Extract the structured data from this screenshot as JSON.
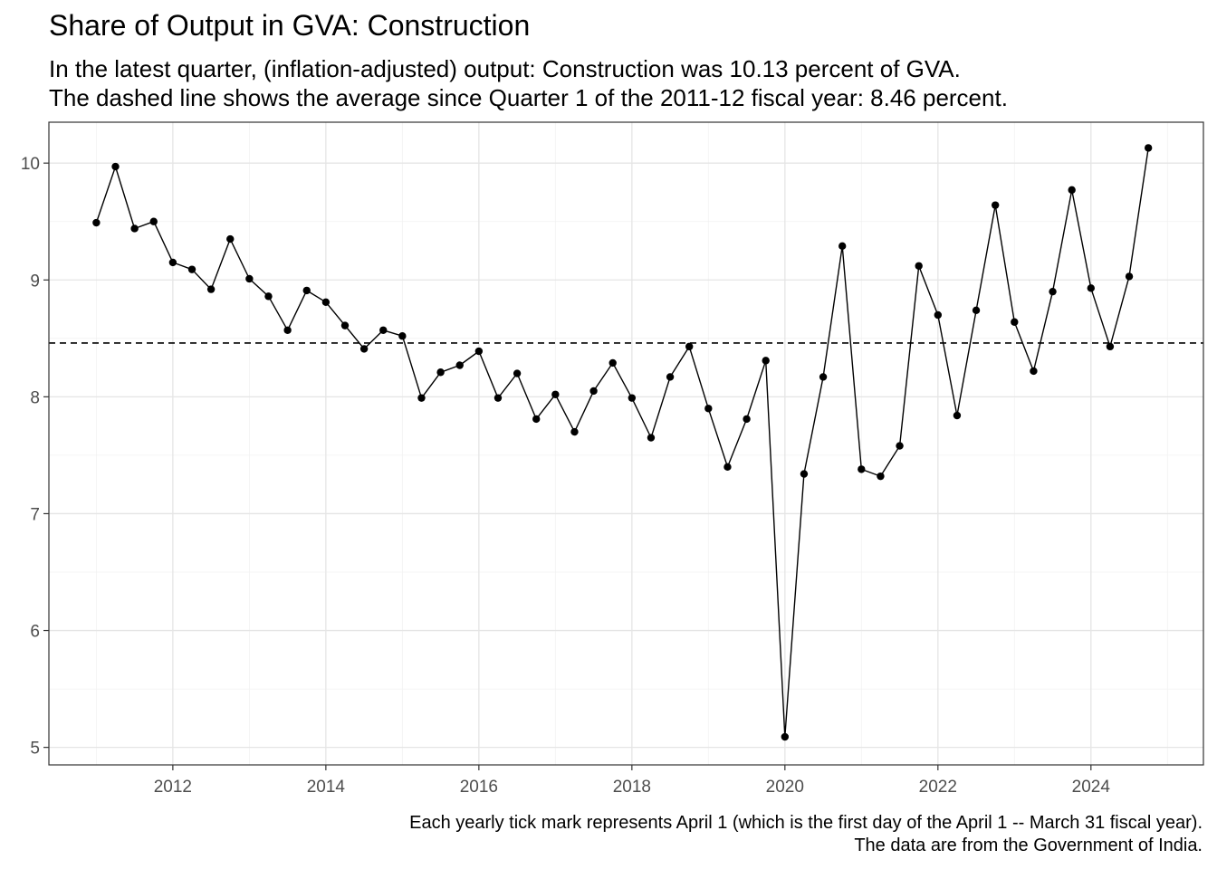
{
  "title": "Share of Output in GVA: Construction",
  "subtitle": [
    "In the latest quarter, (inflation-adjusted) output: Construction was 10.13 percent of GVA.",
    "The dashed line shows the average since Quarter 1 of the 2011-12 fiscal year: 8.46 percent."
  ],
  "caption": [
    "Each yearly tick mark represents April 1 (which is the first day of the April 1 -- March 31 fiscal year).",
    "The data are from the Government of India."
  ],
  "chart_data": {
    "type": "line",
    "title": "Share of Output in GVA: Construction",
    "xlabel": "",
    "ylabel": "",
    "xlim": [
      2010.38,
      2025.47
    ],
    "ylim": [
      4.85,
      10.35
    ],
    "x_ticks": [
      2012,
      2014,
      2016,
      2018,
      2020,
      2022,
      2024
    ],
    "y_ticks": [
      5,
      6,
      7,
      8,
      9,
      10
    ],
    "grid": true,
    "average_line": {
      "value": 8.46,
      "style": "dashed"
    },
    "series": [
      {
        "x": [
          2011.0,
          2011.25,
          2011.5,
          2011.75,
          2012.0,
          2012.25,
          2012.5,
          2012.75,
          2013.0,
          2013.25,
          2013.5,
          2013.75,
          2014.0,
          2014.25,
          2014.5,
          2014.75,
          2015.0,
          2015.25,
          2015.5,
          2015.75,
          2016.0,
          2016.25,
          2016.5,
          2016.75,
          2017.0,
          2017.25,
          2017.5,
          2017.75,
          2018.0,
          2018.25,
          2018.5,
          2018.75,
          2019.0,
          2019.25,
          2019.5,
          2019.75,
          2020.0,
          2020.25,
          2020.5,
          2020.75,
          2021.0,
          2021.25,
          2021.5,
          2021.75,
          2022.0,
          2022.25,
          2022.5,
          2022.75,
          2023.0,
          2023.25,
          2023.5,
          2023.75,
          2024.0,
          2024.25,
          2024.5,
          2024.75
        ],
        "y": [
          9.49,
          9.97,
          9.44,
          9.5,
          9.15,
          9.09,
          8.92,
          9.35,
          9.01,
          8.86,
          8.57,
          8.91,
          8.81,
          8.61,
          8.41,
          8.57,
          8.52,
          7.99,
          8.21,
          8.27,
          8.39,
          7.99,
          8.2,
          7.81,
          8.02,
          7.7,
          8.05,
          8.29,
          7.99,
          7.65,
          8.17,
          8.43,
          7.9,
          7.4,
          7.81,
          8.31,
          5.09,
          7.34,
          8.17,
          9.29,
          7.38,
          7.32,
          7.58,
          9.12,
          8.7,
          7.84,
          8.74,
          9.64,
          8.64,
          8.22,
          8.9,
          9.77,
          8.93,
          8.43,
          9.03,
          10.13
        ]
      }
    ]
  }
}
